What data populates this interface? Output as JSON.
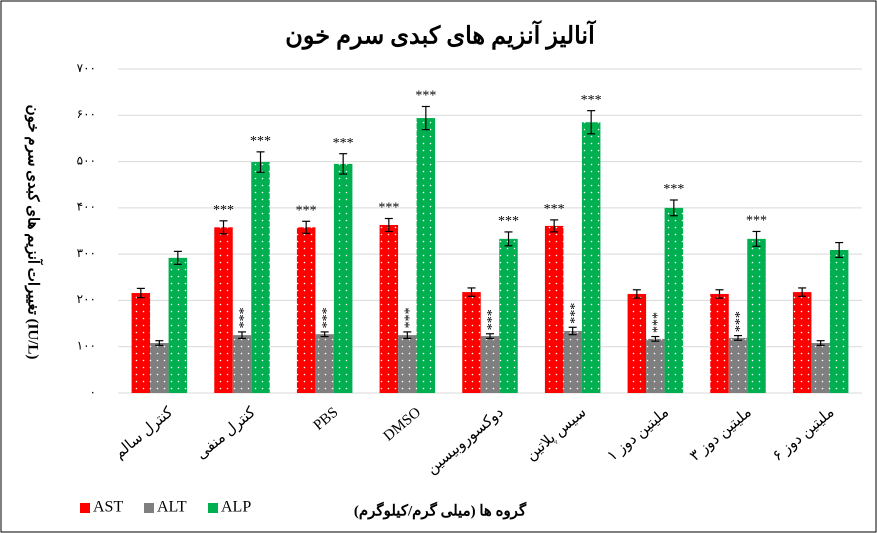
{
  "chart_data": {
    "type": "bar",
    "title": "آنالیز آنزیم های کبدی سرم خون",
    "y_label": "تغییرات آنزیم های کبدی سرم خون (IU/L)",
    "x_label": "گروه ها (میلی گرم/کیلوگرم)",
    "categories": [
      "کنترل سالم",
      "کنترل منفی",
      "PBS",
      "DMSO",
      "دوکسوروبیسین",
      "سیس پلاتین",
      "ملیتین دوز ۱",
      "ملیتین دوز ۳",
      "ملیتین دوز ۶"
    ],
    "series": [
      {
        "name": "AST",
        "color": "#ff0000",
        "values": [
          216,
          358,
          358,
          363,
          218,
          361,
          214,
          214,
          218
        ],
        "errors": [
          10,
          14,
          13,
          14,
          9,
          13,
          9,
          9,
          9
        ],
        "labels": [
          null,
          "***",
          "***",
          "***",
          null,
          "***",
          null,
          null,
          null
        ]
      },
      {
        "name": "ALT",
        "color": "#7f7f7f",
        "values": [
          108,
          125,
          127,
          125,
          123,
          134,
          117,
          119,
          108
        ],
        "errors": [
          5,
          7,
          5,
          7,
          5,
          8,
          5,
          5,
          5
        ],
        "labels": [
          null,
          "***",
          "***",
          "***",
          "***",
          "***",
          "***",
          "***",
          null
        ]
      },
      {
        "name": "ALP",
        "color": "#00b050",
        "values": [
          292,
          499,
          495,
          594,
          333,
          585,
          400,
          333,
          309
        ],
        "errors": [
          14,
          22,
          22,
          25,
          15,
          25,
          17,
          16,
          16
        ],
        "labels": [
          null,
          "***",
          "***",
          "***",
          "***",
          "***",
          "***",
          "***",
          null
        ]
      }
    ],
    "ylim": [
      0,
      700
    ],
    "yticks": [
      {
        "value": 0,
        "label": "۰"
      },
      {
        "value": 100,
        "label": "۱۰۰"
      },
      {
        "value": 200,
        "label": "۲۰۰"
      },
      {
        "value": 300,
        "label": "۳۰۰"
      },
      {
        "value": 400,
        "label": "۴۰۰"
      },
      {
        "value": 500,
        "label": "۵۰۰"
      },
      {
        "value": 600,
        "label": "۶۰۰"
      },
      {
        "value": 700,
        "label": "۷۰۰"
      }
    ],
    "grid": true,
    "legend": "bottom-left"
  }
}
